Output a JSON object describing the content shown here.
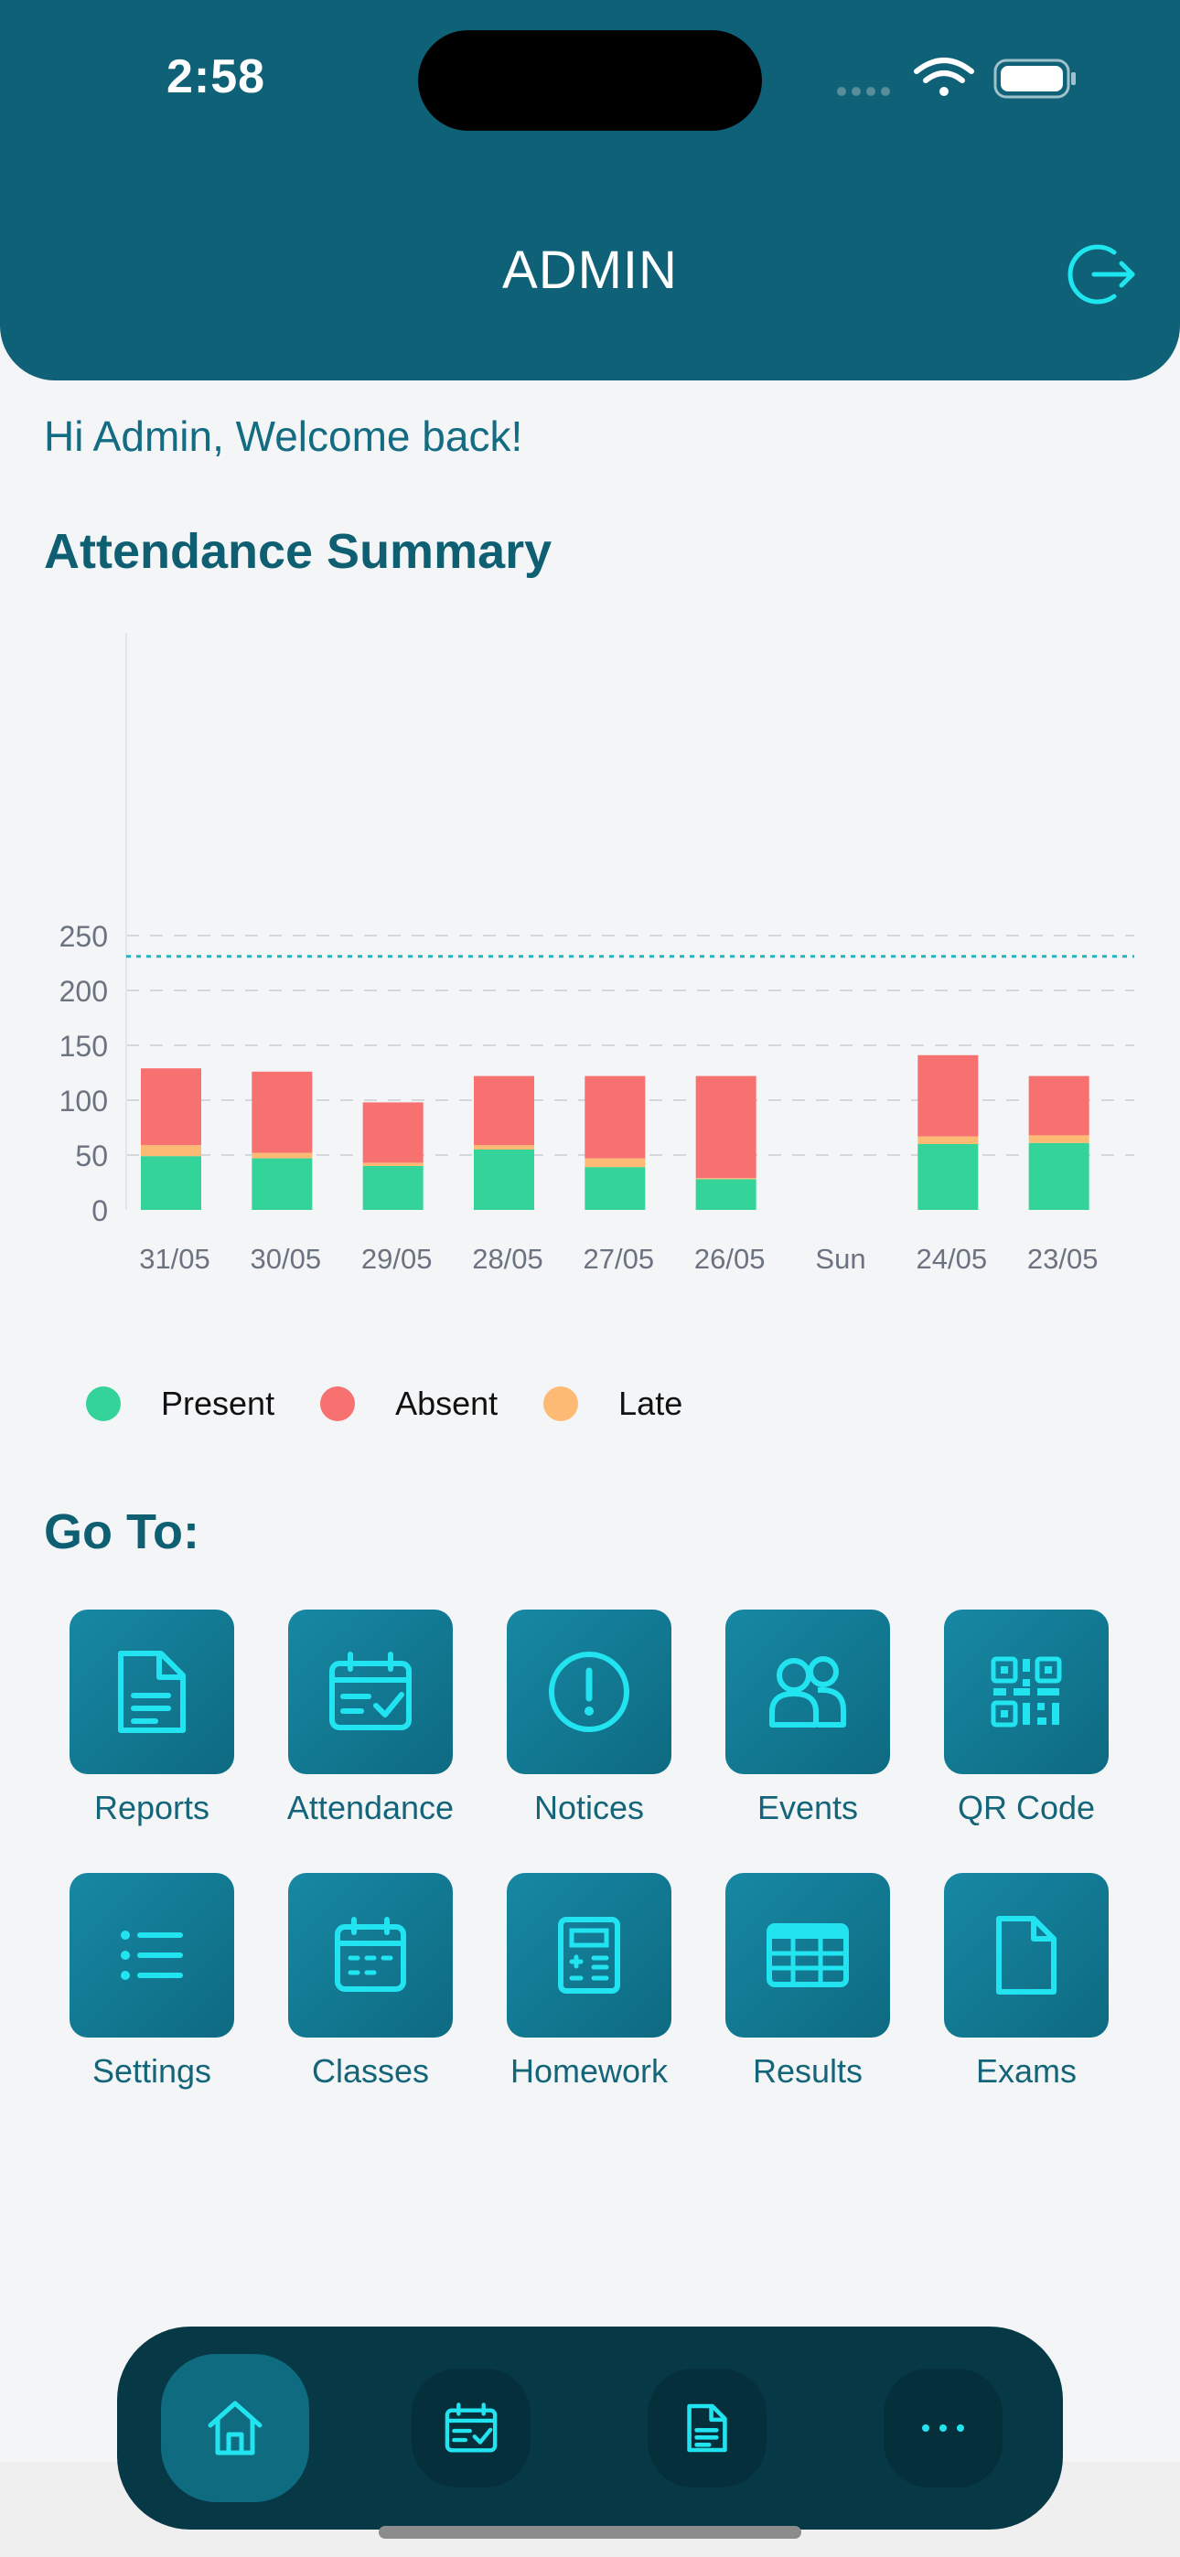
{
  "status": {
    "time": "2:58"
  },
  "header": {
    "title": "ADMIN",
    "logout_icon": "logout-icon"
  },
  "welcome": "Hi Admin, Welcome back!",
  "attendance": {
    "title": "Attendance Summary",
    "legend": [
      {
        "label": "Present",
        "color": "#34d399"
      },
      {
        "label": "Absent",
        "color": "#f87171"
      },
      {
        "label": "Late",
        "color": "#fdba74"
      }
    ]
  },
  "chart_data": {
    "type": "bar",
    "stacked": true,
    "categories": [
      "31/05",
      "30/05",
      "29/05",
      "28/05",
      "27/05",
      "26/05",
      "Sun",
      "24/05",
      "23/05"
    ],
    "series": [
      {
        "name": "Present",
        "color": "#34d399",
        "values": [
          49,
          47,
          40,
          55,
          39,
          28,
          0,
          60,
          61
        ]
      },
      {
        "name": "Late",
        "color": "#fdba74",
        "values": [
          10,
          5,
          3,
          4,
          8,
          1,
          0,
          7,
          7
        ]
      },
      {
        "name": "Absent",
        "color": "#f87171",
        "values": [
          70,
          74,
          55,
          63,
          75,
          93,
          0,
          74,
          54
        ]
      }
    ],
    "yticks": [
      0,
      50,
      100,
      150,
      200,
      250
    ],
    "ylim": [
      0,
      260
    ],
    "reference_line": 231,
    "grid": true
  },
  "goto": {
    "title": "Go To:",
    "items": [
      {
        "label": "Reports",
        "icon": "reports-icon"
      },
      {
        "label": "Attendance",
        "icon": "attendance-icon"
      },
      {
        "label": "Notices",
        "icon": "notices-icon"
      },
      {
        "label": "Events",
        "icon": "events-icon"
      },
      {
        "label": "QR Code",
        "icon": "qr-code-icon"
      },
      {
        "label": "Settings",
        "icon": "settings-list-icon"
      },
      {
        "label": "Classes",
        "icon": "classes-icon"
      },
      {
        "label": "Homework",
        "icon": "homework-icon"
      },
      {
        "label": "Results",
        "icon": "results-icon"
      },
      {
        "label": "Exams",
        "icon": "exams-icon"
      }
    ]
  },
  "nav": {
    "items": [
      {
        "icon": "home-icon",
        "active": true
      },
      {
        "icon": "attendance-icon",
        "active": false
      },
      {
        "icon": "document-icon",
        "active": false
      },
      {
        "icon": "more-icon",
        "active": false
      }
    ]
  }
}
